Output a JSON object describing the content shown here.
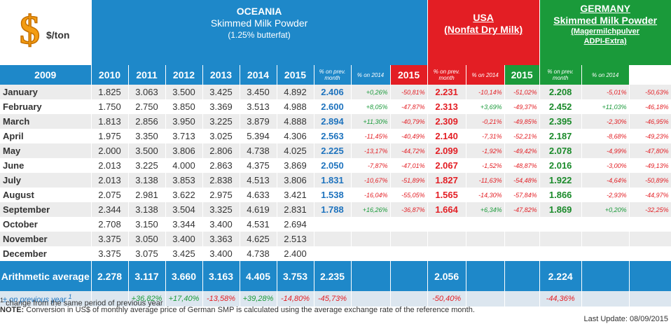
{
  "unit": "$/ton",
  "oceania": {
    "region": "OCEANIA",
    "product": "Skimmed Milk Powder",
    "note": "(1.25% butterfat)"
  },
  "usa": {
    "region": "USA",
    "product": "(Nonfat Dry Milk)"
  },
  "germany": {
    "region": "GERMANY",
    "product": "Skimmed Milk Powder",
    "note1": "(Magermilchpulver",
    "note2": "ADPI-Extra)"
  },
  "columns": [
    "2009",
    "2010",
    "2011",
    "2012",
    "2013",
    "2014",
    "2015",
    "% on prev. month",
    "% on 2014",
    "2015",
    "% on prev. month",
    "% on 2014",
    "2015",
    "% on prev. month",
    "% on 2014"
  ],
  "rows": [
    [
      "January",
      "1.825",
      "3.063",
      "3.500",
      "3.425",
      "3.450",
      "4.892",
      "2.406",
      "+0,26%",
      "-50,81%",
      "2.231",
      "-10,14%",
      "-51,02%",
      "2.208",
      "-5,01%",
      "-50,63%"
    ],
    [
      "February",
      "1.750",
      "2.750",
      "3.850",
      "3.369",
      "3.513",
      "4.988",
      "2.600",
      "+8,05%",
      "-47,87%",
      "2.313",
      "+3,69%",
      "-49,37%",
      "2.452",
      "+11,03%",
      "-46,18%"
    ],
    [
      "March",
      "1.813",
      "2.856",
      "3.950",
      "3.225",
      "3.879",
      "4.888",
      "2.894",
      "+11,30%",
      "-40,79%",
      "2.309",
      "-0,21%",
      "-49,85%",
      "2.395",
      "-2,30%",
      "-46,95%"
    ],
    [
      "April",
      "1.975",
      "3.350",
      "3.713",
      "3.025",
      "5.394",
      "4.306",
      "2.563",
      "-11,45%",
      "-40,49%",
      "2.140",
      "-7,31%",
      "-52,21%",
      "2.187",
      "-8,68%",
      "-49,23%"
    ],
    [
      "May",
      "2.000",
      "3.500",
      "3.806",
      "2.806",
      "4.738",
      "4.025",
      "2.225",
      "-13,17%",
      "-44,72%",
      "2.099",
      "-1,92%",
      "-49,42%",
      "2.078",
      "-4,99%",
      "-47,80%"
    ],
    [
      "June",
      "2.013",
      "3.225",
      "4.000",
      "2.863",
      "4.375",
      "3.869",
      "2.050",
      "-7,87%",
      "-47,01%",
      "2.067",
      "-1,52%",
      "-48,87%",
      "2.016",
      "-3,00%",
      "-49,13%"
    ],
    [
      "July",
      "2.013",
      "3.138",
      "3.853",
      "2.838",
      "4.513",
      "3.806",
      "1.831",
      "-10,67%",
      "-51,89%",
      "1.827",
      "-11,63%",
      "-54,48%",
      "1.922",
      "-4,64%",
      "-50,89%"
    ],
    [
      "August",
      "2.075",
      "2.981",
      "3.622",
      "2.975",
      "4.633",
      "3.421",
      "1.538",
      "-16,04%",
      "-55,05%",
      "1.565",
      "-14,30%",
      "-57,84%",
      "1.866",
      "-2,93%",
      "-44,97%"
    ],
    [
      "September",
      "2.344",
      "3.138",
      "3.504",
      "3.325",
      "4.619",
      "2.831",
      "1.788",
      "+16,26%",
      "-36,87%",
      "1.664",
      "+6,34%",
      "-47,82%",
      "1.869",
      "+0,20%",
      "-32,25%"
    ],
    [
      "October",
      "2.708",
      "3.150",
      "3.344",
      "3.400",
      "4.531",
      "2.694"
    ],
    [
      "November",
      "3.375",
      "3.050",
      "3.400",
      "3.363",
      "4.625",
      "2.513"
    ],
    [
      "December",
      "3.375",
      "3.075",
      "3.425",
      "3.400",
      "4.738",
      "2.400"
    ]
  ],
  "average": {
    "label": "Arithmetic average",
    "oceania": [
      "2.278",
      "3.117",
      "3.660",
      "3.163",
      "4.405",
      "3.753",
      "2.235"
    ],
    "usa": "2.056",
    "germany": "2.224"
  },
  "change": {
    "label": "± on previous year",
    "mark": "1",
    "oceania": [
      "+36,82%",
      "+17,40%",
      "-13,58%",
      "+39,28%",
      "-14,80%",
      "-45,73%"
    ],
    "usa": "-50,40%",
    "germany": "-44,36%"
  },
  "footnote": {
    "mark": "1",
    "text": " change from the same period of previous year"
  },
  "note": {
    "label": "NOTE:",
    "text": " Conversion in US$ of monthly average price of German SMP is calculated using the average exchange rate of the reference month."
  },
  "updated": "Last Update: 08/09/2015"
}
